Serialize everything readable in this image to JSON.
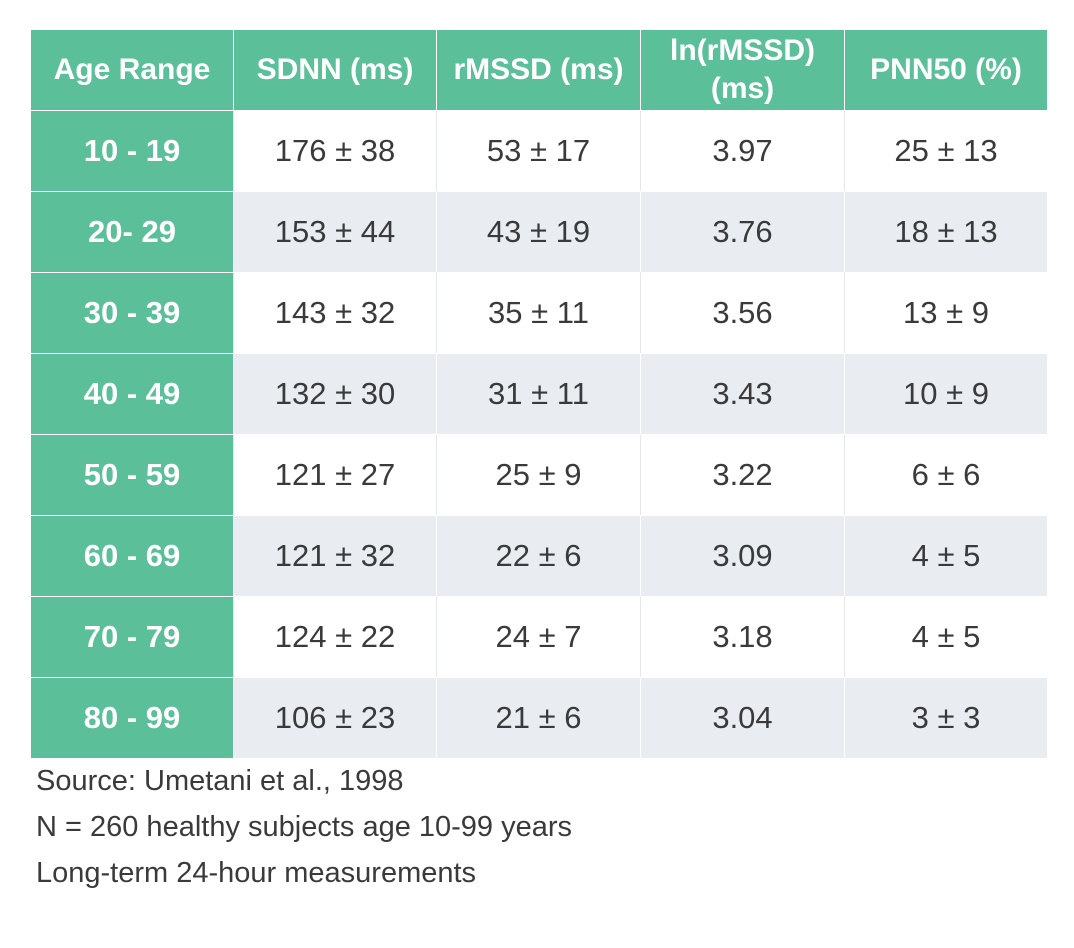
{
  "table": {
    "headers": [
      "Age Range",
      "SDNN (ms)",
      "rMSSD (ms)",
      "ln(rMSSD) (ms)",
      "PNN50 (%)"
    ],
    "rows": [
      [
        "10 - 19",
        "176 ± 38",
        "53 ± 17",
        "3.97",
        "25 ± 13"
      ],
      [
        "20- 29",
        "153 ± 44",
        "43 ± 19",
        "3.76",
        "18 ± 13"
      ],
      [
        "30 - 39",
        "143 ± 32",
        "35 ± 11",
        "3.56",
        "13 ± 9"
      ],
      [
        "40 - 49",
        "132 ± 30",
        "31 ± 11",
        "3.43",
        "10 ± 9"
      ],
      [
        "50 - 59",
        "121 ± 27",
        "25 ± 9",
        "3.22",
        "6 ± 6"
      ],
      [
        "60 - 69",
        "121 ± 32",
        "22 ± 6",
        "3.09",
        "4 ± 5"
      ],
      [
        "70 - 79",
        "124 ± 22",
        "24 ± 7",
        "3.18",
        "4 ± 5"
      ],
      [
        "80 - 99",
        "106 ± 23",
        "21 ± 6",
        "3.04",
        "3 ± 3"
      ]
    ]
  },
  "notes": {
    "source": "Source: Umetani et al., 1998",
    "subjects": "N = 260 healthy subjects age 10-99 years",
    "measurement": "Long-term 24-hour measurements"
  },
  "colors": {
    "accent_green": "#5bbf9a",
    "row_alt_gray": "#e9edf2",
    "text_dark": "#3a3a3a"
  }
}
